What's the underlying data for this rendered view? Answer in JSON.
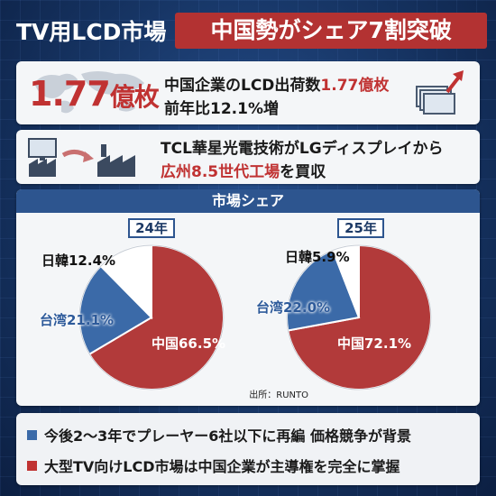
{
  "title": {
    "left": "TV用LCD市場",
    "right": "中国勢がシェア7割突破"
  },
  "shipments": {
    "number": "1.77",
    "unit": "億枚",
    "line1_prefix": "中国企業のLCD出荷数",
    "line1_highlight": "1.77億枚",
    "line2": "前年比12.1%増"
  },
  "acquisition": {
    "line1": "TCL華星光電技術がLGディスプレイから",
    "line2_highlight": "広州8.5世代工場",
    "line2_suffix": "を買収"
  },
  "market_share": {
    "header": "市場シェア",
    "source": "出所：RUNTO"
  },
  "chart_data": [
    {
      "type": "pie",
      "title": "24年",
      "categories": [
        "中国",
        "台湾",
        "日韓"
      ],
      "values": [
        66.5,
        21.1,
        12.4
      ],
      "labels": [
        "中国66.5%",
        "台湾21.1%",
        "日韓12.4%"
      ],
      "colors": [
        "#b23a3a",
        "#3b6aa8",
        "#ffffff"
      ]
    },
    {
      "type": "pie",
      "title": "25年",
      "categories": [
        "中国",
        "台湾",
        "日韓"
      ],
      "values": [
        72.1,
        22.0,
        5.9
      ],
      "labels": [
        "中国72.1%",
        "台湾22.0%",
        "日韓5.9%"
      ],
      "colors": [
        "#b23a3a",
        "#3b6aa8",
        "#ffffff"
      ]
    }
  ],
  "bullets": [
    {
      "text": "今後2～3年でプレーヤー6社以下に再編 価格競争が背景",
      "color": "#3b6aa8"
    },
    {
      "text": "大型TV向けLCD市場は中国企業が主導権を完全に掌握",
      "color": "#c03232"
    }
  ]
}
